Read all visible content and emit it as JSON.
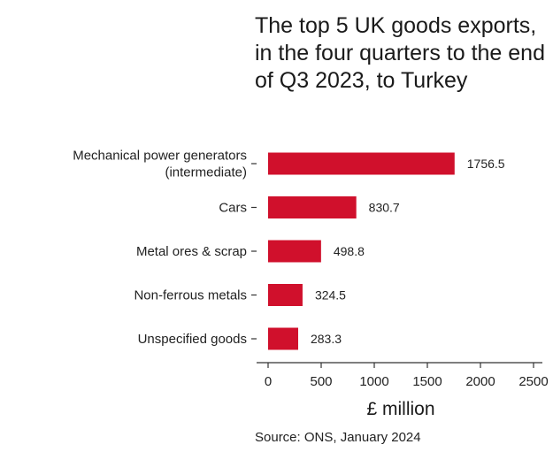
{
  "chart_data": {
    "type": "bar",
    "orientation": "horizontal",
    "title": "The top 5 UK goods exports, in the four quarters to the end of Q3 2023, to Turkey",
    "categories": [
      [
        "Mechanical power generators",
        "(intermediate)"
      ],
      [
        "Cars"
      ],
      [
        "Metal ores & scrap"
      ],
      [
        "Non-ferrous metals"
      ],
      [
        "Unspecified goods"
      ]
    ],
    "values": [
      1756.5,
      830.7,
      498.8,
      324.5,
      283.3
    ],
    "value_labels": [
      "1756.5",
      "830.7",
      "498.8",
      "324.5",
      "283.3"
    ],
    "xlabel": "£ million",
    "ylabel": "",
    "xlim": [
      0,
      2500
    ],
    "xticks": [
      0,
      500,
      1000,
      1500,
      2000,
      2500
    ],
    "grid": false,
    "bar_color": "#d0102c",
    "source": "Source: ONS, January 2024"
  }
}
